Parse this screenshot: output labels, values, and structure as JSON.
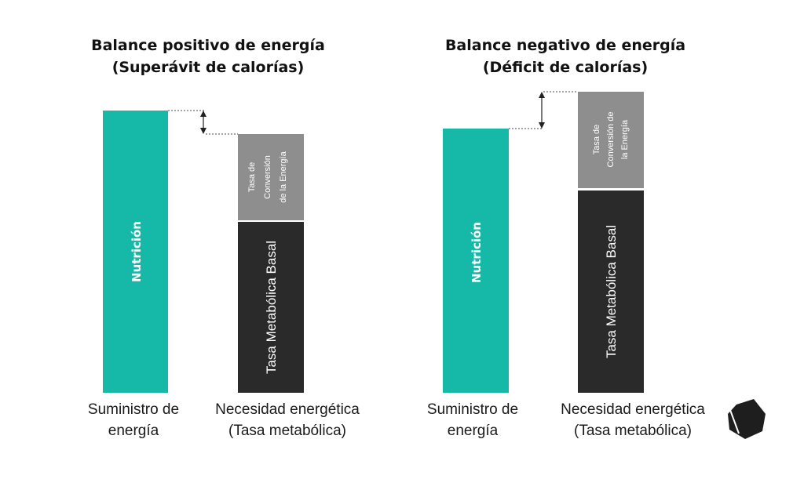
{
  "colors": {
    "nutrition": "#16b8a8",
    "basal": "#2a2a2a",
    "conversion": "#8e8e8e",
    "text": "#1a1a1a",
    "logo": "#1e1e1e"
  },
  "panels": [
    {
      "title_line1": "Balance positivo de energía",
      "title_line2": "(Superávit de calorías)",
      "supply_bar": {
        "label": "Nutrición",
        "value": 1.0
      },
      "need_bar": {
        "basal_label": "Tasa Metabólica Basal",
        "basal_value": 0.6,
        "conversion_label_lines": [
          "Tasa de",
          "Conversión",
          "de la Energía"
        ],
        "conversion_value": 0.3
      },
      "caption_supply": [
        "Suministro de",
        "energía"
      ],
      "caption_need": [
        "Necesidad energética",
        "(Tasa metabólica)"
      ],
      "balance": "surplus"
    },
    {
      "title_line1": "Balance negativo de energía",
      "title_line2": "(Déficit de calorías)",
      "supply_bar": {
        "label": "Nutrición",
        "value": 0.9
      },
      "need_bar": {
        "basal_label": "Tasa Metabólica Basal",
        "basal_value": 0.68,
        "conversion_label_lines": [
          "Tasa de",
          "Conversión de",
          "la Energía"
        ],
        "conversion_value": 0.32
      },
      "caption_supply": [
        "Suministro de",
        "energía"
      ],
      "caption_need": [
        "Necesidad energética",
        "(Tasa metabólica)"
      ],
      "balance": "deficit"
    }
  ],
  "logo": {
    "icon": "heptagon-logo-icon"
  }
}
